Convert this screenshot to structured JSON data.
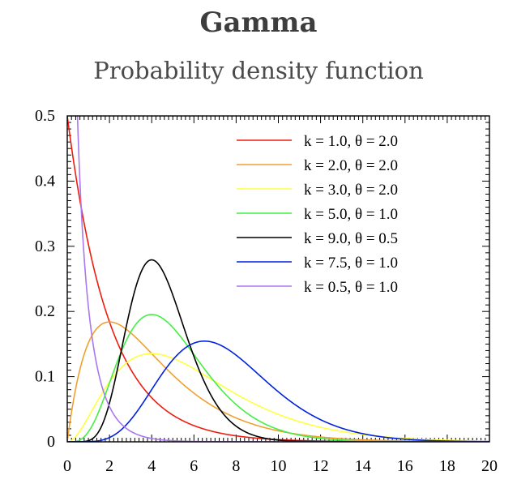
{
  "header": {
    "title": "Gamma",
    "subtitle": "Probability density function"
  },
  "chart_data": {
    "type": "line",
    "title": "Gamma",
    "subtitle": "Probability density function",
    "xlabel": "",
    "ylabel": "",
    "xlim": [
      0,
      20
    ],
    "ylim": [
      0,
      0.5
    ],
    "x_ticks": [
      "0",
      "2",
      "4",
      "6",
      "8",
      "10",
      "12",
      "14",
      "16",
      "18",
      "20"
    ],
    "y_ticks": [
      "0",
      "0.1",
      "0.2",
      "0.3",
      "0.4",
      "0.5"
    ],
    "legend_position": "top-right",
    "grid": false,
    "series": [
      {
        "name": "k = 1.0, θ = 2.0",
        "k": 1.0,
        "theta": 2.0,
        "color": "#ee1c0e",
        "x": [
          0,
          1,
          2,
          4,
          6,
          8,
          10,
          14,
          20
        ],
        "values": [
          0.5,
          0.303,
          0.184,
          0.068,
          0.025,
          0.009,
          0.003,
          0.0005,
          0.0
        ]
      },
      {
        "name": "k = 2.0, θ = 2.0",
        "k": 2.0,
        "theta": 2.0,
        "color": "#f0a030",
        "x": [
          0,
          1,
          2,
          4,
          6,
          8,
          10,
          14,
          20
        ],
        "values": [
          0,
          0.152,
          0.184,
          0.135,
          0.075,
          0.037,
          0.017,
          0.003,
          0.0
        ]
      },
      {
        "name": "k = 3.0, θ = 2.0",
        "k": 3.0,
        "theta": 2.0,
        "color": "#ffff40",
        "x": [
          0,
          2,
          4,
          6,
          8,
          10,
          14,
          20
        ],
        "values": [
          0,
          0.092,
          0.135,
          0.112,
          0.073,
          0.042,
          0.011,
          0.001
        ]
      },
      {
        "name": "k = 5.0, θ = 1.0",
        "k": 5.0,
        "theta": 1.0,
        "color": "#44ee44",
        "x": [
          0,
          2,
          4,
          6,
          8,
          10,
          14,
          20
        ],
        "values": [
          0,
          0.09,
          0.195,
          0.134,
          0.057,
          0.019,
          0.001,
          0.0
        ]
      },
      {
        "name": "k = 9.0, θ = 0.5",
        "k": 9.0,
        "theta": 0.5,
        "color": "#000000",
        "x": [
          0,
          2,
          3,
          4,
          5,
          6,
          8,
          10
        ],
        "values": [
          0,
          0.026,
          0.138,
          0.279,
          0.226,
          0.105,
          0.006,
          0.0
        ]
      },
      {
        "name": "k = 7.5, θ = 1.0",
        "k": 7.5,
        "theta": 1.0,
        "color": "#0022dd",
        "x": [
          0,
          2,
          4,
          6,
          6.5,
          8,
          10,
          14,
          20
        ],
        "values": [
          0,
          0.006,
          0.076,
          0.151,
          0.154,
          0.133,
          0.075,
          0.013,
          0.0
        ]
      },
      {
        "name": "k = 0.5, θ = 1.0",
        "k": 0.5,
        "theta": 1.0,
        "color": "#aa77ee",
        "x": [
          0.5,
          1,
          2,
          4,
          6,
          10
        ],
        "values": [
          0.484,
          0.208,
          0.054,
          0.005,
          0.0006,
          0.0
        ]
      }
    ]
  }
}
